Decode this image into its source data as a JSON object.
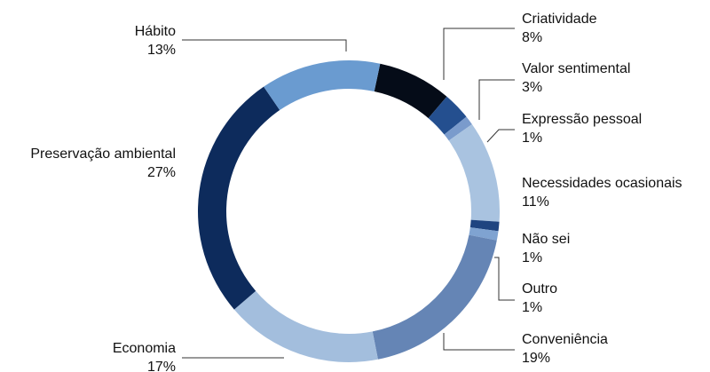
{
  "chart_data": {
    "type": "donut",
    "categories": [
      "Criatividade",
      "Valor sentimental",
      "Expressão pessoal",
      "Necessidades ocasionais",
      "Não sei",
      "Outro",
      "Conveniência",
      "Economia",
      "Preservação ambiental",
      "Hábito"
    ],
    "values": [
      8,
      3,
      1,
      11,
      1,
      1,
      19,
      17,
      27,
      13
    ],
    "value_labels": [
      "8%",
      "3%",
      "1%",
      "11%",
      "1%",
      "1%",
      "19%",
      "17%",
      "27%",
      "13%"
    ],
    "colors": [
      "#050c18",
      "#244f8f",
      "#7a9bcc",
      "#a9c3e0",
      "#1f4480",
      "#7fa3d1",
      "#6585b5",
      "#a3bedd",
      "#0d2b5c",
      "#6a9bd0"
    ]
  }
}
